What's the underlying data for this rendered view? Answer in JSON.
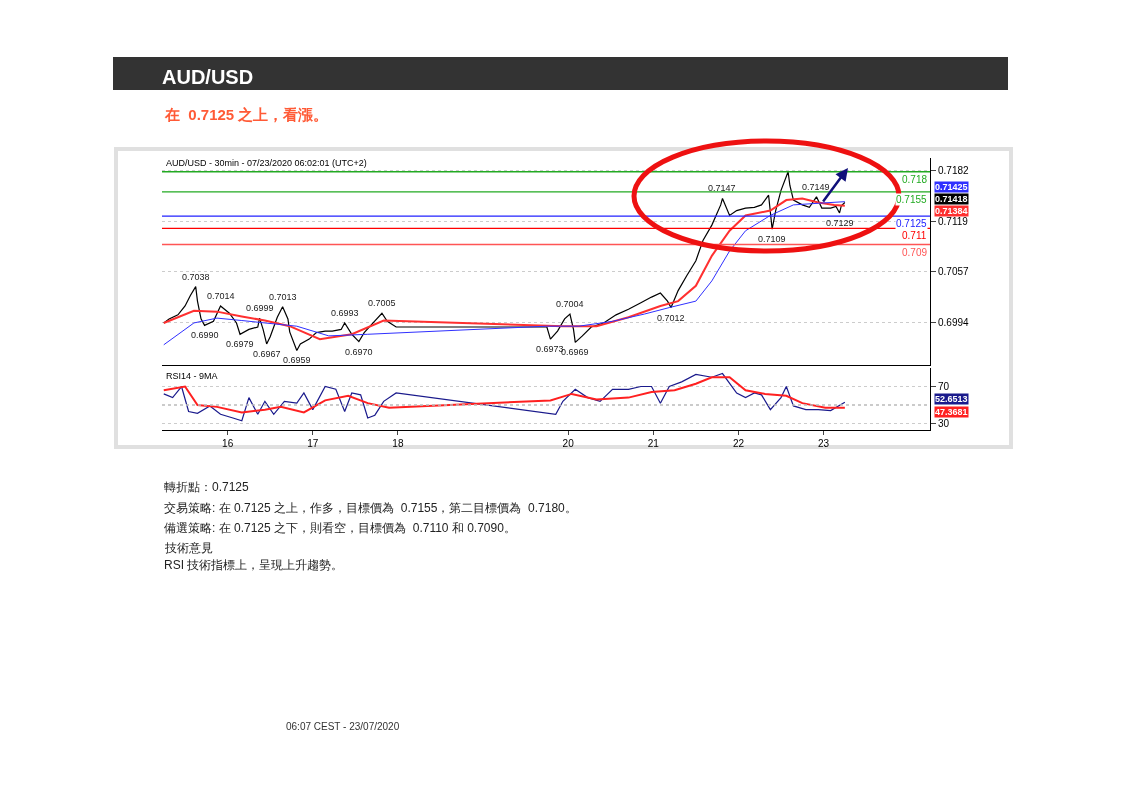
{
  "chart_data": [
    {
      "type": "line",
      "title": "AUD/USD",
      "subtitle": "在  0.7125 之上，看漲。",
      "xlim": [
        "2020-07-15T05:30",
        "2020-07-24T06:00"
      ],
      "ylim": [
        0.6941,
        0.7197
      ],
      "yticks": [
        0.7182,
        0.7119,
        0.7057,
        0.6994
      ],
      "grid": "y",
      "tick_labels": "y",
      "marker": "none",
      "line_style": "solid",
      "series": [
        {
          "color": "#000000",
          "x": [
            "2020-07-15T06:00",
            "2020-07-15T07:30",
            "2020-07-15T10:00",
            "2020-07-15T12:00",
            "2020-07-15T13:30",
            "2020-07-15T15:00",
            "2020-07-15T15:30",
            "2020-07-15T16:30",
            "2020-07-15T17:30",
            "2020-07-15T20:00",
            "2020-07-15T22:00",
            "2020-07-16T00:30",
            "2020-07-16T02:30",
            "2020-07-16T03:30",
            "2020-07-16T06:00",
            "2020-07-16T08:30",
            "2020-07-16T09:00",
            "2020-07-16T10:00",
            "2020-07-16T11:00",
            "2020-07-16T12:00",
            "2020-07-16T14:00",
            "2020-07-16T15:30",
            "2020-07-16T17:00",
            "2020-07-16T17:30",
            "2020-07-16T19:30",
            "2020-07-16T20:30",
            "2020-07-16T23:00",
            "2020-07-17T01:00",
            "2020-07-17T03:30",
            "2020-07-17T05:30",
            "2020-07-17T08:00",
            "2020-07-17T09:00",
            "2020-07-17T11:00",
            "2020-07-17T13:00",
            "2020-07-17T14:30",
            "2020-07-17T17:00",
            "2020-07-17T19:30",
            "2020-07-17T21:00",
            "2020-07-17T23:30",
            "2020-07-19T18:00",
            "2020-07-19T19:00",
            "2020-07-19T21:00",
            "2020-07-19T23:00",
            "2020-07-20T00:30",
            "2020-07-20T01:30",
            "2020-07-20T02:00",
            "2020-07-20T04:00",
            "2020-07-20T06:30",
            "2020-07-20T10:00",
            "2020-07-20T13:30",
            "2020-07-20T17:00",
            "2020-07-20T20:30",
            "2020-07-20T23:30",
            "2020-07-21T02:00",
            "2020-07-21T04:00",
            "2020-07-21T05:00",
            "2020-07-21T07:00",
            "2020-07-21T09:30",
            "2020-07-21T12:00",
            "2020-07-21T14:00",
            "2020-07-21T16:30",
            "2020-07-21T19:00",
            "2020-07-21T19:30",
            "2020-07-21T21:30",
            "2020-07-21T23:30",
            "2020-07-22T02:00",
            "2020-07-22T04:30",
            "2020-07-22T06:30",
            "2020-07-22T08:30",
            "2020-07-22T09:30",
            "2020-07-22T10:30",
            "2020-07-22T12:00",
            "2020-07-22T14:00",
            "2020-07-22T14:30",
            "2020-07-22T15:30",
            "2020-07-22T18:00",
            "2020-07-22T20:00",
            "2020-07-22T22:00",
            "2020-07-22T23:30",
            "2020-07-23T02:00",
            "2020-07-23T03:30",
            "2020-07-23T04:30",
            "2020-07-23T05:00",
            "2020-07-23T06:00"
          ],
          "values": [
            0.6993,
            0.6998,
            0.7003,
            0.7014,
            0.7027,
            0.7038,
            0.702,
            0.6998,
            0.699,
            0.6995,
            0.7014,
            0.7005,
            0.6993,
            0.6979,
            0.6985,
            0.6988,
            0.6999,
            0.6985,
            0.6967,
            0.6976,
            0.7,
            0.7013,
            0.6998,
            0.6982,
            0.6959,
            0.6967,
            0.6973,
            0.6981,
            0.6983,
            0.6983,
            0.6985,
            0.6993,
            0.6979,
            0.697,
            0.6981,
            0.6993,
            0.7005,
            0.6995,
            0.6988,
            0.6988,
            0.6973,
            0.6983,
            0.6998,
            0.7004,
            0.6985,
            0.6969,
            0.6977,
            0.6988,
            0.6993,
            0.7003,
            0.701,
            0.7018,
            0.7025,
            0.703,
            0.702,
            0.7012,
            0.7033,
            0.7052,
            0.707,
            0.7095,
            0.7114,
            0.7139,
            0.7147,
            0.7126,
            0.7132,
            0.7135,
            0.7136,
            0.7139,
            0.7151,
            0.7109,
            0.7132,
            0.7157,
            0.718,
            0.7163,
            0.7145,
            0.7139,
            0.7136,
            0.7149,
            0.7135,
            0.7135,
            0.7137,
            0.7129,
            0.7138,
            0.7142
          ]
        },
        {
          "color": "#ff3030",
          "x": [
            "2020-07-15T06:00",
            "2020-07-15T14:30",
            "2020-07-15T21:00",
            "2020-07-16T04:00",
            "2020-07-16T10:30",
            "2020-07-16T17:30",
            "2020-07-17T02:00",
            "2020-07-17T11:00",
            "2020-07-17T20:00",
            "2020-07-19T22:30",
            "2020-07-20T08:00",
            "2020-07-20T17:00",
            "2020-07-21T02:00",
            "2020-07-21T07:00",
            "2020-07-21T12:00",
            "2020-07-21T16:30",
            "2020-07-21T21:30",
            "2020-07-22T02:00",
            "2020-07-22T09:00",
            "2020-07-22T13:30",
            "2020-07-22T18:00",
            "2020-07-22T22:30",
            "2020-07-23T03:00",
            "2020-07-23T06:00"
          ],
          "values": [
            0.6993,
            0.7008,
            0.7007,
            0.7001,
            0.6996,
            0.6989,
            0.6973,
            0.6979,
            0.6996,
            0.6989,
            0.6989,
            0.7,
            0.7014,
            0.702,
            0.7039,
            0.7076,
            0.7107,
            0.7126,
            0.7132,
            0.7145,
            0.7147,
            0.7142,
            0.7139,
            0.7138
          ]
        },
        {
          "color": "#3030ff",
          "x": [
            "2020-07-15T06:00",
            "2020-07-15T14:30",
            "2020-07-15T21:00",
            "2020-07-16T04:00",
            "2020-07-16T10:30",
            "2020-07-16T19:30",
            "2020-07-17T04:30",
            "2020-07-17T15:30",
            "2020-07-19T18:00",
            "2020-07-20T03:00",
            "2020-07-20T12:30",
            "2020-07-20T21:30",
            "2020-07-21T04:30",
            "2020-07-21T12:00",
            "2020-07-21T16:30",
            "2020-07-21T21:30",
            "2020-07-22T02:00",
            "2020-07-22T09:00",
            "2020-07-22T15:30",
            "2020-07-22T22:30",
            "2020-07-23T06:00"
          ],
          "values": [
            0.6966,
            0.6993,
            0.6999,
            0.6996,
            0.6993,
            0.6989,
            0.6977,
            0.6979,
            0.6989,
            0.6989,
            0.6995,
            0.7004,
            0.7012,
            0.702,
            0.7045,
            0.7082,
            0.7107,
            0.7126,
            0.7139,
            0.7141,
            0.7143
          ]
        }
      ],
      "ref_lines": [
        {
          "axis": "y",
          "value": 0.718,
          "label": "0.718",
          "color": "#22aa22"
        },
        {
          "axis": "y",
          "value": 0.7155,
          "label": "0.7155",
          "color": "#22aa22"
        },
        {
          "axis": "y",
          "value": 0.7125,
          "label": "0.7125",
          "color": "#2222ff"
        },
        {
          "axis": "y",
          "value": 0.711,
          "label": "0.711",
          "color": "#ff0000"
        },
        {
          "axis": "y",
          "value": 0.709,
          "label": "0.709",
          "color": "#ff5555"
        }
      ],
      "annotations": [
        "AUD/USD - 30min - 07/23/2020 06:02:01 (UTC+2)",
        "轉折點：0.7125",
        "交易策略: 在 0.7125 之上，作多，目標價為  0.7155，第二目標價為  0.7180。",
        "備選策略: 在 0.7125 之下，則看空，目標價為  0.7110 和 0.7090。",
        "技術意見",
        "RSI 技術指標上，呈現上升趨勢。",
        "06:07 CEST - 23/07/2020",
        "0.71425",
        "0.71418",
        "0.71384",
        {
          "text": "0.7038",
          "x": "2020-07-15T15:00",
          "y": 0.7038
        },
        {
          "text": "0.7014",
          "x": "2020-07-15T22:00",
          "y": 0.7014
        },
        {
          "text": "0.6999",
          "x": "2020-07-16T09:00",
          "y": 0.6999
        },
        {
          "text": "0.7013",
          "x": "2020-07-16T15:30",
          "y": 0.7013
        },
        {
          "text": "0.6993",
          "x": "2020-07-17T09:00",
          "y": 0.6993
        },
        {
          "text": "0.7005",
          "x": "2020-07-17T19:30",
          "y": 0.7005
        },
        {
          "text": "0.7004",
          "x": "2020-07-20T00:30",
          "y": 0.7004
        },
        {
          "text": "0.7147",
          "x": "2020-07-21T19:30",
          "y": 0.7147
        },
        {
          "text": "0.7149",
          "x": "2020-07-22T22:00",
          "y": 0.7149
        },
        {
          "text": "0.6990",
          "x": "2020-07-15T17:30",
          "y": 0.699
        },
        {
          "text": "0.6979",
          "x": "2020-07-16T03:30",
          "y": 0.6979
        },
        {
          "text": "0.6967",
          "x": "2020-07-16T11:00",
          "y": 0.6967
        },
        {
          "text": "0.6959",
          "x": "2020-07-16T19:30",
          "y": 0.6959
        },
        {
          "text": "0.6970",
          "x": "2020-07-17T13:00",
          "y": 0.697
        },
        {
          "text": "0.6973",
          "x": "2020-07-19T19:00",
          "y": 0.6973
        },
        {
          "text": "0.6969",
          "x": "2020-07-20T02:00",
          "y": 0.6969
        },
        {
          "text": "0.7012",
          "x": "2020-07-21T05:00",
          "y": 0.7012
        },
        {
          "text": "0.7109",
          "x": "2020-07-22T09:30",
          "y": 0.7109
        },
        {
          "text": "0.7129",
          "x": "2020-07-23T04:30",
          "y": 0.7129
        }
      ]
    },
    {
      "type": "line",
      "title": "RSI14 - 9MA",
      "xlim": [
        "2020-07-15T05:30",
        "2020-07-24T06:00"
      ],
      "ylim": [
        23,
        90
      ],
      "yticks": [
        70,
        30
      ],
      "grid": "y",
      "marker": "none",
      "line_style": "solid",
      "xticks": [
        {
          "value": "2020-07-16",
          "label": "16"
        },
        {
          "value": "2020-07-17",
          "label": "17"
        },
        {
          "value": "2020-07-18",
          "label": "18"
        },
        {
          "value": "2020-07-20",
          "label": "20"
        },
        {
          "value": "2020-07-21",
          "label": "21"
        },
        {
          "value": "2020-07-22",
          "label": "22"
        },
        {
          "value": "2020-07-23",
          "label": "23"
        }
      ],
      "series": [
        {
          "color": "#1a1a8c",
          "x": [
            "2020-07-15T06:00",
            "2020-07-15T08:30",
            "2020-07-15T11:00",
            "2020-07-15T13:00",
            "2020-07-15T15:30",
            "2020-07-15T19:00",
            "2020-07-15T22:00",
            "2020-07-16T01:30",
            "2020-07-16T04:00",
            "2020-07-16T06:00",
            "2020-07-16T08:30",
            "2020-07-16T10:30",
            "2020-07-16T13:00",
            "2020-07-16T16:00",
            "2020-07-16T19:30",
            "2020-07-16T21:30",
            "2020-07-17T00:00",
            "2020-07-17T03:30",
            "2020-07-17T06:30",
            "2020-07-17T09:00",
            "2020-07-17T11:00",
            "2020-07-17T13:30",
            "2020-07-17T15:30",
            "2020-07-17T17:30",
            "2020-07-17T20:00",
            "2020-07-17T23:30",
            "2020-07-19T20:30",
            "2020-07-19T22:30",
            "2020-07-20T02:00",
            "2020-07-20T05:30",
            "2020-07-20T09:00",
            "2020-07-20T12:30",
            "2020-07-20T17:00",
            "2020-07-20T20:30",
            "2020-07-20T23:30",
            "2020-07-21T02:00",
            "2020-07-21T04:30",
            "2020-07-21T08:00",
            "2020-07-21T12:00",
            "2020-07-21T16:30",
            "2020-07-21T19:30",
            "2020-07-21T23:30",
            "2020-07-22T02:00",
            "2020-07-22T04:30",
            "2020-07-22T06:30",
            "2020-07-22T09:00",
            "2020-07-22T12:00",
            "2020-07-22T13:30",
            "2020-07-22T15:30",
            "2020-07-22T19:00",
            "2020-07-22T22:30",
            "2020-07-23T02:00",
            "2020-07-23T06:00"
          ],
          "values": [
            62,
            58,
            70,
            43,
            41,
            49,
            40,
            36,
            33,
            58,
            40,
            54,
            40,
            54,
            52,
            63,
            45,
            70,
            67,
            43,
            63,
            61,
            36,
            39,
            54,
            63,
            40,
            54,
            67,
            58,
            54,
            67,
            67,
            70,
            70,
            52,
            70,
            75,
            83,
            80,
            84,
            63,
            58,
            63,
            61,
            45,
            58,
            70,
            49,
            45,
            45,
            44,
            53
          ]
        },
        {
          "color": "#ff2020",
          "x": [
            "2020-07-15T06:00",
            "2020-07-15T12:00",
            "2020-07-15T15:30",
            "2020-07-15T21:00",
            "2020-07-16T04:00",
            "2020-07-16T10:30",
            "2020-07-16T15:00",
            "2020-07-16T21:30",
            "2020-07-17T03:30",
            "2020-07-17T10:00",
            "2020-07-17T15:30",
            "2020-07-17T21:30",
            "2020-07-19T19:00",
            "2020-07-20T01:00",
            "2020-07-20T08:00",
            "2020-07-20T17:00",
            "2020-07-20T23:30",
            "2020-07-21T06:00",
            "2020-07-21T12:00",
            "2020-07-21T16:30",
            "2020-07-21T21:30",
            "2020-07-22T02:00",
            "2020-07-22T07:30",
            "2020-07-22T13:30",
            "2020-07-22T18:00",
            "2020-07-23T00:30",
            "2020-07-23T06:00"
          ],
          "values": [
            66,
            70,
            50,
            48,
            42,
            45,
            48,
            42,
            55,
            60,
            52,
            47,
            55,
            62,
            56,
            58,
            64,
            66,
            73,
            80,
            80,
            66,
            62,
            60,
            52,
            47,
            47
          ]
        }
      ],
      "ref_lines": [
        {
          "axis": "y",
          "value": 50,
          "color": "#bbbbbb",
          "line_style": "dotted"
        }
      ],
      "annotations": [
        "52.6513",
        "47.3681"
      ]
    }
  ]
}
